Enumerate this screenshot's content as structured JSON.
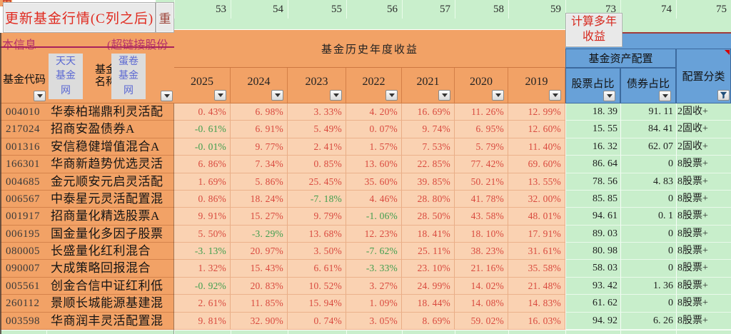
{
  "toolbar": {
    "update_button": "更新基金行情(C列之后)",
    "partial_button": "重",
    "corner_fragment": "更",
    "info_left": "本信息",
    "info_right": "(超链接股份",
    "calc_button": "计算多年收益"
  },
  "column_numbers": [
    "53",
    "54",
    "55",
    "56",
    "57",
    "58",
    "59",
    "73",
    "74",
    "75"
  ],
  "table": {
    "code_header": "基金代码",
    "tiantian_link": "天天基金网",
    "name_header": "基金名称",
    "danjuan_link": "蛋卷基金网",
    "history_title": "基金历史年度收益",
    "years": [
      "2025",
      "2024",
      "2023",
      "2022",
      "2021",
      "2020",
      "2019"
    ],
    "allocation_title": "基金资产配置",
    "stock_header": "股票占比",
    "bond_header": "债券占比",
    "category_header": "配置分类"
  },
  "rows": [
    {
      "code": "004010",
      "name": "华泰柏瑞鼎利灵活配",
      "returns": [
        "0.43%",
        "6.98%",
        "3.33%",
        "4.20%",
        "16.69%",
        "11.26%",
        "12.99%"
      ],
      "stock": "18.39",
      "bond": "91.11",
      "category": "2固收+"
    },
    {
      "code": "217024",
      "name": "招商安盈债券A",
      "returns": [
        "-0.61%",
        "6.91%",
        "5.49%",
        "0.07%",
        "9.74%",
        "6.95%",
        "12.60%"
      ],
      "stock": "15.55",
      "bond": "84.41",
      "category": "2固收+"
    },
    {
      "code": "001316",
      "name": "安信稳健增值混合A",
      "returns": [
        "-0.01%",
        "9.77%",
        "2.41%",
        "1.57%",
        "7.53%",
        "5.79%",
        "11.40%"
      ],
      "stock": "16.32",
      "bond": "62.07",
      "category": "2固收+"
    },
    {
      "code": "166301",
      "name": "华商新趋势优选灵活",
      "returns": [
        "6.86%",
        "7.34%",
        "0.85%",
        "13.60%",
        "22.85%",
        "77.42%",
        "69.60%"
      ],
      "stock": "86.64",
      "bond": "0",
      "category": "8股票+"
    },
    {
      "code": "004685",
      "name": "金元顺安元启灵活配",
      "returns": [
        "1.69%",
        "5.86%",
        "25.45%",
        "35.60%",
        "39.85%",
        "50.21%",
        "13.55%"
      ],
      "stock": "78.56",
      "bond": "4.83",
      "category": "8股票+"
    },
    {
      "code": "006567",
      "name": "中泰星元灵活配置混",
      "returns": [
        "0.86%",
        "18.24%",
        "-7.18%",
        "4.46%",
        "28.80%",
        "41.78%",
        "32.00%"
      ],
      "stock": "85.85",
      "bond": "0",
      "category": "8股票+"
    },
    {
      "code": "001917",
      "name": "招商量化精选股票A",
      "returns": [
        "9.91%",
        "15.27%",
        "9.79%",
        "-1.06%",
        "28.50%",
        "43.58%",
        "48.01%"
      ],
      "stock": "94.61",
      "bond": "0.1",
      "category": "8股票+"
    },
    {
      "code": "006195",
      "name": "国金量化多因子股票",
      "returns": [
        "5.50%",
        "-3.29%",
        "13.68%",
        "12.23%",
        "18.41%",
        "18.10%",
        "17.91%"
      ],
      "stock": "89.03",
      "bond": "0",
      "category": "8股票+"
    },
    {
      "code": "080005",
      "name": "长盛量化红利混合",
      "returns": [
        "-3.13%",
        "20.97%",
        "3.50%",
        "-7.62%",
        "25.11%",
        "38.23%",
        "31.61%"
      ],
      "stock": "80.98",
      "bond": "0",
      "category": "8股票+"
    },
    {
      "code": "090007",
      "name": "大成策略回报混合",
      "returns": [
        "1.32%",
        "15.43%",
        "6.61%",
        "-3.33%",
        "23.10%",
        "21.16%",
        "35.58%"
      ],
      "stock": "58.03",
      "bond": "0",
      "category": "8股票+"
    },
    {
      "code": "005561",
      "name": "创金合信中证红利低",
      "returns": [
        "-0.92%",
        "20.83%",
        "10.52%",
        "3.27%",
        "24.99%",
        "14.02%",
        "21.48%"
      ],
      "stock": "93.42",
      "bond": "1.36",
      "category": "8股票+"
    },
    {
      "code": "260112",
      "name": "景顺长城能源基建混",
      "returns": [
        "2.61%",
        "11.85%",
        "15.94%",
        "1.09%",
        "18.44%",
        "14.08%",
        "14.83%"
      ],
      "stock": "61.62",
      "bond": "0",
      "category": "8股票+"
    },
    {
      "code": "003598",
      "name": "华商润丰灵活配置混",
      "returns": [
        "9.81%",
        "32.90%",
        "0.74%",
        "3.05%",
        "8.69%",
        "59.02%",
        "16.03%"
      ],
      "stock": "94.92",
      "bond": "6.26",
      "category": "8股票+"
    }
  ],
  "colors": {
    "header_orange": "#f2a266",
    "data_peach": "#fad2b2",
    "green_light": "#c8eecb",
    "band_green": "#c9efcc",
    "blue_header": "#68a1d8",
    "value_red": "#d9493e",
    "value_green": "#3f9e4d",
    "link_blue": "#5b68d2",
    "accent_red": "#e02a1f",
    "info_magenta": "#b5306a"
  }
}
